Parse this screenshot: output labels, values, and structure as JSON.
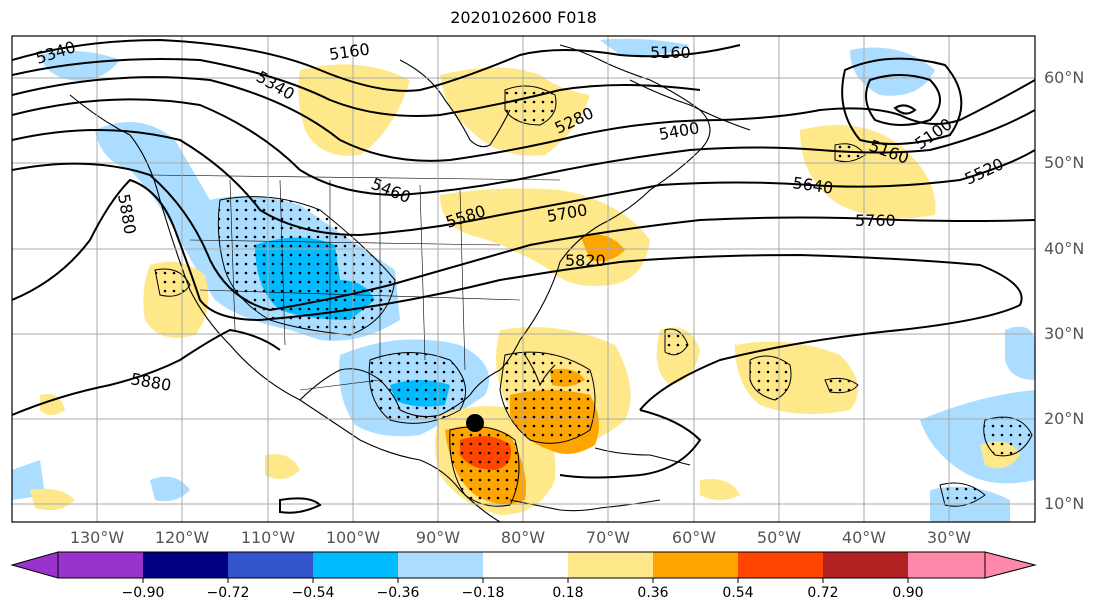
{
  "title": "2020102600 F018",
  "lon_labels": [
    "130°W",
    "120°W",
    "110°W",
    "100°W",
    "90°W",
    "80°W",
    "70°W",
    "60°W",
    "50°W",
    "40°W",
    "30°W"
  ],
  "lat_labels": [
    "60°N",
    "50°N",
    "40°N",
    "30°N",
    "20°N",
    "10°N"
  ],
  "contour_labels": [
    "5340",
    "5160",
    "5340",
    "5160",
    "5280",
    "5400",
    "5160",
    "5100",
    "5520",
    "5460",
    "5640",
    "5580",
    "5700",
    "5760",
    "5880",
    "5820",
    "5880"
  ],
  "colorbar": {
    "tick_labels": [
      "−0.90",
      "−0.72",
      "−0.54",
      "−0.36",
      "−0.18",
      "0.18",
      "0.36",
      "0.54",
      "0.72",
      "0.90"
    ],
    "colors": [
      "#9933cc",
      "#000080",
      "#3355cc",
      "#00bbff",
      "#aaddff",
      "#ffffff",
      "#ffe88a",
      "#ffa500",
      "#ff4500",
      "#b22222",
      "#ff88aa"
    ]
  },
  "shading_colors": {
    "light_blue": "#aaddff",
    "blue": "#00bbff",
    "yellow": "#ffe88a",
    "orange": "#ffa500",
    "red": "#ff4500"
  }
}
